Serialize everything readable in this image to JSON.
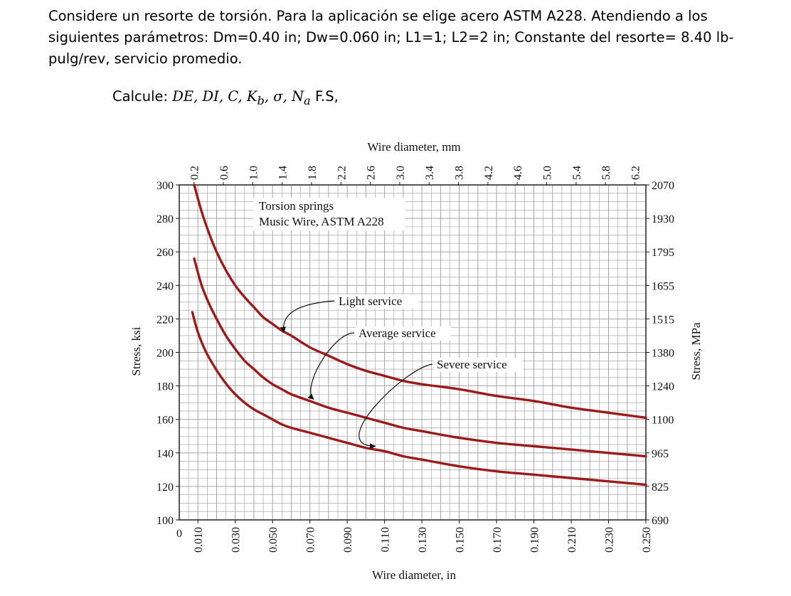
{
  "problem": {
    "paragraph": "Considere un resorte de torsión. Para la aplicación se elige acero ASTM A228. Atendiendo a los siguientes parámetros: Dm=0.40 in; Dw=0.060 in; L1=1; L2=2 in; Constante del resorte= 8.40 lb-pulg/rev, servicio promedio.",
    "calc_label": "Calcule:",
    "calc_vars": "DE, DI, C, K",
    "calc_sub": "b",
    "calc_vars2": ", σ, N",
    "calc_sub2": "a",
    "calc_tail": " F.S,"
  },
  "chart_data": {
    "type": "line",
    "title": "Torsion springs",
    "subtitle": "Music Wire, ASTM A228",
    "xlabel": "Wire diameter, in",
    "x2label": "Wire diameter, mm",
    "ylabel": "Stress, ksi",
    "y2label": "Stress, MPa",
    "xlim": [
      0,
      0.25
    ],
    "ylim": [
      100,
      300
    ],
    "grid": true,
    "x_zero_label": "0",
    "x_tick_labels": [
      "0.010",
      "0.030",
      "0.050",
      "0.070",
      "0.090",
      "0.110",
      "0.130",
      "0.150",
      "0.170",
      "0.190",
      "0.210",
      "0.230",
      "0.250"
    ],
    "x_ticks": [
      0.01,
      0.03,
      0.05,
      0.07,
      0.09,
      0.11,
      0.13,
      0.15,
      0.17,
      0.19,
      0.21,
      0.23,
      0.25
    ],
    "mm_tick_labels": [
      "0.2",
      "0.6",
      "1.0",
      "1.4",
      "1.8",
      "2.2",
      "2.6",
      "3.0",
      "3.4",
      "3.8",
      "4.2",
      "4.6",
      "5.0",
      "5.4",
      "5.8",
      "6.2"
    ],
    "mm_ticks": [
      0.2,
      0.6,
      1.0,
      1.4,
      1.8,
      2.2,
      2.6,
      3.0,
      3.4,
      3.8,
      4.2,
      4.6,
      5.0,
      5.4,
      5.8,
      6.2
    ],
    "y_ticks": [
      100,
      120,
      140,
      160,
      180,
      200,
      220,
      240,
      260,
      280,
      300
    ],
    "y_tick_labels": [
      "100",
      "120",
      "140",
      "160",
      "180",
      "200",
      "220",
      "240",
      "260",
      "280",
      "300"
    ],
    "y2_tick_labels": [
      "690",
      "825",
      "965",
      "1100",
      "1240",
      "1380",
      "1515",
      "1655",
      "1795",
      "1930",
      "2070"
    ],
    "series": [
      {
        "name": "Light service",
        "x": [
          0.008,
          0.012,
          0.016,
          0.02,
          0.025,
          0.03,
          0.035,
          0.04,
          0.045,
          0.05,
          0.055,
          0.06,
          0.07,
          0.08,
          0.09,
          0.1,
          0.11,
          0.12,
          0.13,
          0.15,
          0.17,
          0.19,
          0.21,
          0.23,
          0.25
        ],
        "values": [
          300,
          284,
          271,
          260,
          249,
          240,
          233,
          227,
          221,
          217,
          213,
          210,
          203,
          198,
          193,
          189,
          186,
          183,
          181,
          178,
          174,
          171,
          167,
          164,
          161
        ]
      },
      {
        "name": "Average service",
        "x": [
          0.008,
          0.012,
          0.016,
          0.02,
          0.025,
          0.03,
          0.035,
          0.04,
          0.045,
          0.05,
          0.055,
          0.06,
          0.07,
          0.08,
          0.09,
          0.1,
          0.11,
          0.12,
          0.13,
          0.15,
          0.17,
          0.19,
          0.21,
          0.23,
          0.25
        ],
        "values": [
          256,
          240,
          229,
          220,
          210,
          202,
          195,
          190,
          185,
          181,
          178,
          175,
          171,
          167,
          164,
          161,
          158,
          155,
          153,
          149,
          146,
          144,
          142,
          140,
          138
        ]
      },
      {
        "name": "Severe service",
        "x": [
          0.007,
          0.01,
          0.014,
          0.018,
          0.022,
          0.026,
          0.03,
          0.035,
          0.04,
          0.045,
          0.05,
          0.055,
          0.06,
          0.07,
          0.08,
          0.09,
          0.1,
          0.11,
          0.12,
          0.13,
          0.15,
          0.17,
          0.19,
          0.21,
          0.23,
          0.25
        ],
        "values": [
          224,
          212,
          201,
          193,
          186,
          180,
          175,
          170,
          166,
          163,
          160,
          157,
          155,
          152,
          149,
          146,
          143,
          141,
          138,
          136,
          132,
          129,
          127,
          125,
          123,
          121
        ]
      }
    ],
    "annotations": [
      {
        "text": "Light service",
        "target_x": 0.056,
        "target_y": 212
      },
      {
        "text": "Average service",
        "target_x": 0.072,
        "target_y": 172
      },
      {
        "text": "Severe service",
        "target_x": 0.105,
        "target_y": 144
      }
    ],
    "colors": {
      "curve": "#9b1b1b",
      "grid": "#9a9a9a",
      "axis": "#111111"
    }
  }
}
